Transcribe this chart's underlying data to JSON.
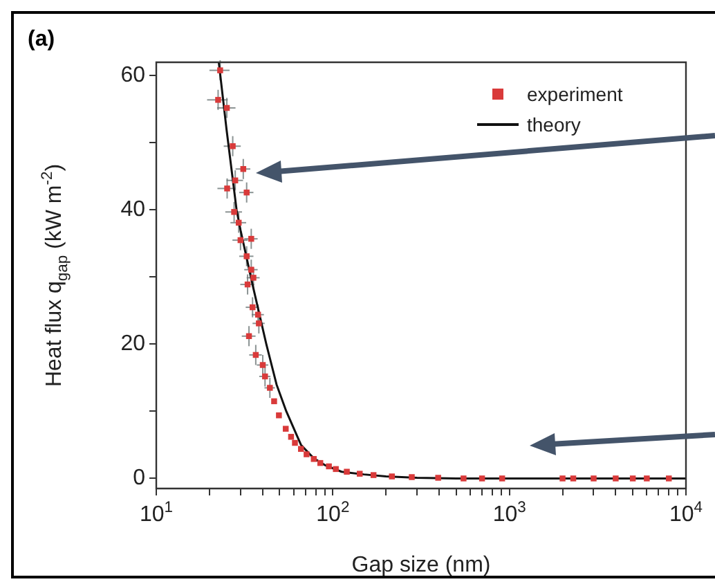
{
  "chart_data": {
    "type": "scatter",
    "xlabel": "Gap size (nm)",
    "ylabel": "Heat flux q$_{gap}$ (kW m$^{-2}$)",
    "log": "x",
    "xlim": [
      10,
      10000
    ],
    "ylim": [
      -1.5,
      62
    ],
    "xticks": [
      {
        "value": 10,
        "label": "10$^{1}$"
      },
      {
        "value": 20,
        "label": null
      },
      {
        "value": 30,
        "label": null
      },
      {
        "value": 40,
        "label": null
      },
      {
        "value": 50,
        "label": null
      },
      {
        "value": 60,
        "label": null
      },
      {
        "value": 70,
        "label": null
      },
      {
        "value": 80,
        "label": null
      },
      {
        "value": 90,
        "label": null
      },
      {
        "value": 100,
        "label": "10$^{2}$"
      },
      {
        "value": 200,
        "label": null
      },
      {
        "value": 300,
        "label": null
      },
      {
        "value": 400,
        "label": null
      },
      {
        "value": 500,
        "label": null
      },
      {
        "value": 600,
        "label": null
      },
      {
        "value": 700,
        "label": null
      },
      {
        "value": 800,
        "label": null
      },
      {
        "value": 900,
        "label": null
      },
      {
        "value": 1000,
        "label": "10$^{3}$"
      },
      {
        "value": 2000,
        "label": null
      },
      {
        "value": 3000,
        "label": null
      },
      {
        "value": 4000,
        "label": null
      },
      {
        "value": 5000,
        "label": null
      },
      {
        "value": 6000,
        "label": null
      },
      {
        "value": 7000,
        "label": null
      },
      {
        "value": 8000,
        "label": null
      },
      {
        "value": 9000,
        "label": null
      },
      {
        "value": 10000,
        "label": "10$^{4}$"
      }
    ],
    "yticks": [
      0,
      {
        "value": 10,
        "label": null
      },
      20,
      {
        "value": 30,
        "label": null
      },
      40,
      {
        "value": 50,
        "label": null
      },
      60
    ],
    "grid": false,
    "legend": "top right",
    "annotations": [
      "(a)"
    ],
    "series": [
      {
        "name": "experiment",
        "type": "scatter",
        "marker": "square",
        "color": "#d93a3a",
        "x": [
          23.0,
          22.4,
          25.1,
          27.1,
          31.1,
          28.0,
          25.2,
          32.5,
          27.6,
          29.3,
          30.0,
          34.5,
          32.5,
          34.5,
          32.9,
          35.5,
          35.1,
          37.7,
          38.1,
          33.5,
          36.6,
          40.1,
          41.3,
          44.0,
          46.5,
          49.5,
          54.1,
          58,
          61.0,
          66,
          71.0,
          78,
          84.9,
          95,
          104,
          120,
          142,
          170,
          216,
          280,
          395,
          550,
          700,
          910,
          2000,
          2300,
          3000,
          4000,
          5000,
          6000,
          8000
        ],
        "values": [
          60.8,
          56.4,
          55.2,
          49.5,
          46.1,
          44.4,
          43.2,
          42.6,
          39.7,
          38.1,
          35.5,
          35.7,
          33.1,
          31.1,
          28.9,
          29.9,
          25.5,
          24.4,
          23.1,
          21.2,
          18.4,
          16.9,
          15.2,
          13.5,
          11.5,
          9.4,
          7.4,
          6.2,
          5.3,
          4.4,
          3.6,
          2.9,
          2.3,
          1.8,
          1.4,
          1.0,
          0.7,
          0.5,
          0.3,
          0.2,
          0.1,
          0,
          0,
          0,
          0,
          0,
          0,
          0,
          0,
          0,
          0
        ],
        "errors": [
          1.5,
          1.5,
          1.5,
          1.5,
          1.5,
          1.5,
          1.5,
          1.5,
          1.5,
          1.5,
          1.5,
          1.5,
          1.5,
          1.5,
          1.5,
          1.5,
          1.5,
          1.5,
          1.5,
          1.5,
          1.5,
          1.5,
          1.5,
          1.5,
          null,
          null,
          null,
          null,
          null,
          null,
          null,
          null,
          null,
          null,
          null,
          null,
          null,
          null,
          null,
          null,
          null,
          null,
          null,
          null,
          null,
          null,
          null,
          null,
          null,
          null,
          null
        ],
        "xerrors": [
          3,
          3,
          3,
          3,
          3,
          3,
          3,
          3,
          3,
          3,
          3,
          3,
          3,
          3,
          3,
          3,
          3,
          3,
          3,
          3,
          3,
          3,
          3,
          3,
          null,
          null,
          null,
          null,
          null,
          null,
          null,
          null,
          null,
          null,
          null,
          null,
          null,
          null,
          null,
          null,
          null,
          null,
          null,
          null,
          null,
          null,
          null,
          null,
          null,
          null,
          null
        ]
      },
      {
        "name": "theory",
        "type": "line",
        "marker": "none",
        "line_style": "solid",
        "color": "#111111",
        "x": [
          22.6,
          25,
          28.5,
          30,
          35,
          42,
          48,
          54.5,
          66,
          78,
          90,
          112,
          150,
          200,
          300,
          500,
          1000,
          3000,
          10000
        ],
        "values": [
          62,
          52,
          40,
          37,
          29,
          20,
          14,
          10,
          5,
          3,
          2,
          1,
          0.6,
          0.3,
          0.1,
          0,
          0,
          0,
          0
        ]
      }
    ]
  }
}
